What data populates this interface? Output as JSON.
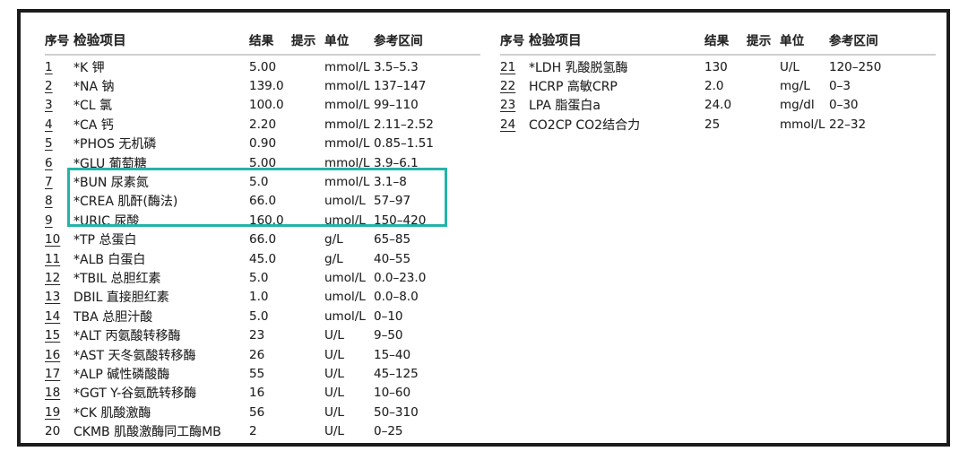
{
  "header": {
    "no": "序号",
    "item": "检验项目",
    "result": "结果",
    "hint": "提示",
    "unit": "单位",
    "range": "参考区间"
  },
  "highlight": {
    "color": "#25b3a9",
    "row_numbers": [
      7,
      8,
      9
    ]
  },
  "tables": {
    "left": {
      "rows": [
        {
          "no": "1",
          "item": "*K 钾",
          "result": "5.00",
          "hint": "",
          "unit": "mmol/L",
          "range": "3.5–5.3",
          "underline": true,
          "hl": false
        },
        {
          "no": "2",
          "item": "*NA 钠",
          "result": "139.0",
          "hint": "",
          "unit": "mmol/L",
          "range": "137–147",
          "underline": true,
          "hl": false
        },
        {
          "no": "3",
          "item": "*CL 氯",
          "result": "100.0",
          "hint": "",
          "unit": "mmol/L",
          "range": "99–110",
          "underline": true,
          "hl": false
        },
        {
          "no": "4",
          "item": "*CA 钙",
          "result": "2.20",
          "hint": "",
          "unit": "mmol/L",
          "range": "2.11–2.52",
          "underline": true,
          "hl": false
        },
        {
          "no": "5",
          "item": "*PHOS 无机磷",
          "result": "0.90",
          "hint": "",
          "unit": "mmol/L",
          "range": "0.85–1.51",
          "underline": true,
          "hl": false
        },
        {
          "no": "6",
          "item": "*GLU 葡萄糖",
          "result": "5.00",
          "hint": "",
          "unit": "mmol/L",
          "range": "3.9–6.1",
          "underline": true,
          "hl": false
        },
        {
          "no": "7",
          "item": "*BUN 尿素氮",
          "result": "5.0",
          "hint": "",
          "unit": "mmol/L",
          "range": "3.1–8",
          "underline": true,
          "hl": true
        },
        {
          "no": "8",
          "item": "*CREA 肌酐(酶法)",
          "result": "66.0",
          "hint": "",
          "unit": "umol/L",
          "range": "57–97",
          "underline": true,
          "hl": true
        },
        {
          "no": "9",
          "item": "*URIC 尿酸",
          "result": "160.0",
          "hint": "",
          "unit": "umol/L",
          "range": "150–420",
          "underline": true,
          "hl": true
        },
        {
          "no": "10",
          "item": "*TP 总蛋白",
          "result": "66.0",
          "hint": "",
          "unit": "g/L",
          "range": "65–85",
          "underline": true,
          "hl": false
        },
        {
          "no": "11",
          "item": "*ALB 白蛋白",
          "result": "45.0",
          "hint": "",
          "unit": "g/L",
          "range": "40–55",
          "underline": true,
          "hl": false
        },
        {
          "no": "12",
          "item": "*TBIL 总胆红素",
          "result": "5.0",
          "hint": "",
          "unit": "umol/L",
          "range": "0.0–23.0",
          "underline": true,
          "hl": false
        },
        {
          "no": "13",
          "item": "DBIL 直接胆红素",
          "result": "1.0",
          "hint": "",
          "unit": "umol/L",
          "range": "0.0–8.0",
          "underline": true,
          "hl": false
        },
        {
          "no": "14",
          "item": "TBA 总胆汁酸",
          "result": "5.0",
          "hint": "",
          "unit": "umol/L",
          "range": "0–10",
          "underline": true,
          "hl": false
        },
        {
          "no": "15",
          "item": "*ALT 丙氨酸转移酶",
          "result": "23",
          "hint": "",
          "unit": "U/L",
          "range": "9–50",
          "underline": true,
          "hl": false
        },
        {
          "no": "16",
          "item": "*AST 天冬氨酸转移酶",
          "result": "26",
          "hint": "",
          "unit": "U/L",
          "range": "15–40",
          "underline": true,
          "hl": false
        },
        {
          "no": "17",
          "item": "*ALP 碱性磷酸酶",
          "result": "55",
          "hint": "",
          "unit": "U/L",
          "range": "45–125",
          "underline": true,
          "hl": false
        },
        {
          "no": "18",
          "item": "*GGT Y-谷氨酰转移酶",
          "result": "16",
          "hint": "",
          "unit": "U/L",
          "range": "10–60",
          "underline": true,
          "hl": false
        },
        {
          "no": "19",
          "item": "*CK 肌酸激酶",
          "result": "56",
          "hint": "",
          "unit": "U/L",
          "range": "50–310",
          "underline": true,
          "hl": false
        },
        {
          "no": "20",
          "item": "CKMB 肌酸激酶同工酶MB",
          "result": "2",
          "hint": "",
          "unit": "U/L",
          "range": "0–25",
          "underline": false,
          "hl": false
        }
      ]
    },
    "right": {
      "rows": [
        {
          "no": "21",
          "item": "*LDH 乳酸脱氢酶",
          "result": "130",
          "hint": "",
          "unit": "U/L",
          "range": "120–250",
          "underline": true,
          "hl": false
        },
        {
          "no": "22",
          "item": "HCRP 高敏CRP",
          "result": "2.0",
          "hint": "",
          "unit": "mg/L",
          "range": "0–3",
          "underline": true,
          "hl": false
        },
        {
          "no": "23",
          "item": "LPA 脂蛋白a",
          "result": "24.0",
          "hint": "",
          "unit": "mg/dl",
          "range": "0–30",
          "underline": true,
          "hl": false
        },
        {
          "no": "24",
          "item": "CO2CP CO2结合力",
          "result": "25",
          "hint": "",
          "unit": "mmol/L",
          "range": "22–32",
          "underline": true,
          "hl": false
        }
      ]
    }
  }
}
